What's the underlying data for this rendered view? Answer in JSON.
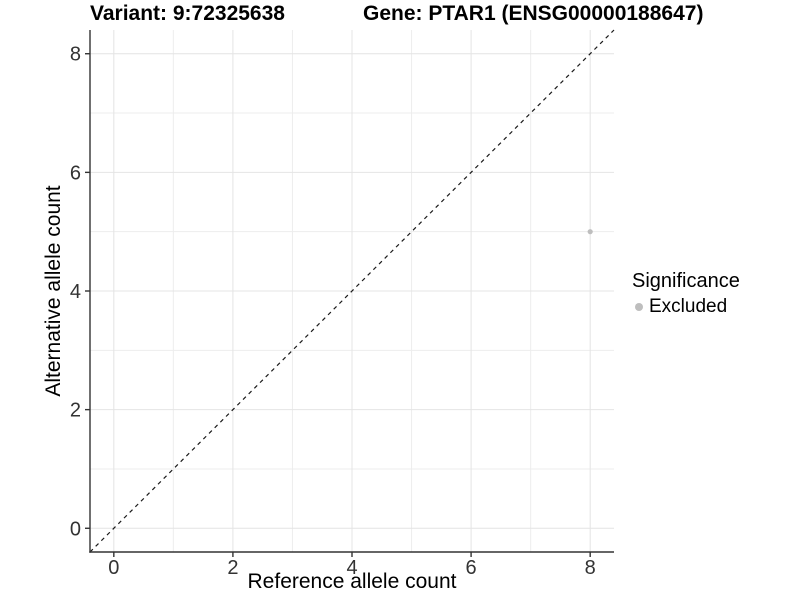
{
  "titles": {
    "variant": "Variant: 9:72325638",
    "gene": "Gene: PTAR1 (ENSG00000188647)"
  },
  "legend": {
    "title": "Significance",
    "items": [
      {
        "label": "Excluded",
        "color": "#bebebe"
      }
    ]
  },
  "chart_data": {
    "type": "scatter",
    "title": "Variant: 9:72325638    Gene: PTAR1 (ENSG00000188647)",
    "xlabel": "Reference allele count",
    "ylabel": "Alternative allele count",
    "xlim": [
      -0.4,
      8.4
    ],
    "ylim": [
      -0.4,
      8.4
    ],
    "x_ticks": [
      0,
      2,
      4,
      6,
      8
    ],
    "y_ticks": [
      0,
      2,
      4,
      6,
      8
    ],
    "minor_gridlines": [
      1,
      3,
      5,
      7
    ],
    "grid": true,
    "legend_position": "right",
    "identity_line": {
      "style": "dashed",
      "from": [
        -0.4,
        -0.4
      ],
      "to": [
        8.4,
        8.4
      ],
      "color": "#1a1a1a"
    },
    "series": [
      {
        "name": "Excluded",
        "color": "#bebebe",
        "points": [
          {
            "x": 8,
            "y": 5
          }
        ]
      }
    ],
    "colors": {
      "background": "#ffffff",
      "grid_major": "#e4e4e4",
      "grid_minor": "#ededed",
      "axis": "#333333",
      "point": "#bebebe"
    }
  }
}
